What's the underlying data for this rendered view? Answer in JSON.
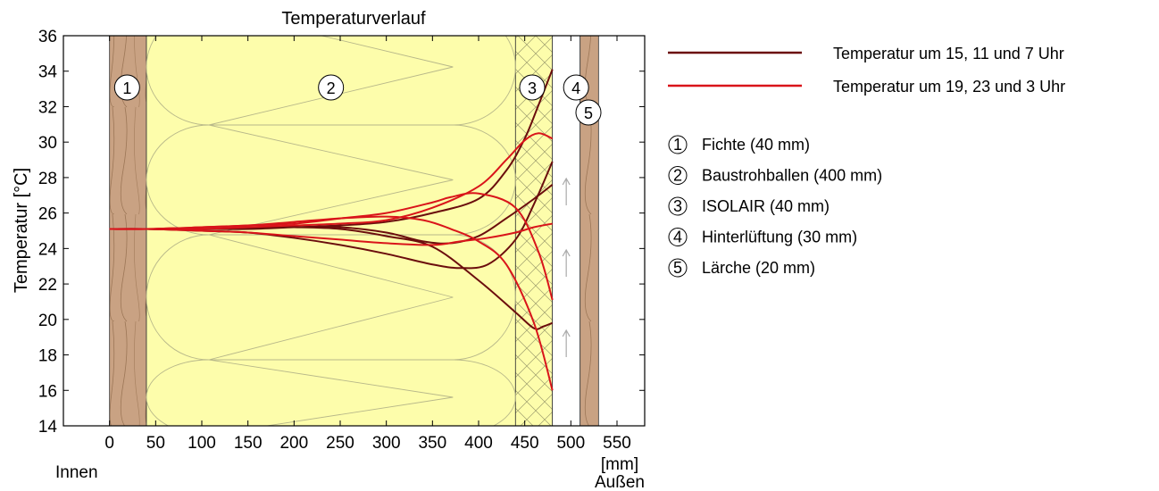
{
  "chart_data": {
    "type": "line",
    "title": "Temperaturverlauf",
    "ylabel": "Temperatur [°C]",
    "xlabel": "[mm]",
    "x_left_label": "Innen",
    "x_right_label": "Außen",
    "xlim": [
      -50,
      580
    ],
    "ylim": [
      14,
      36
    ],
    "xticks": [
      0,
      50,
      100,
      150,
      200,
      250,
      300,
      350,
      400,
      450,
      500,
      550
    ],
    "yticks": [
      14,
      16,
      18,
      20,
      22,
      24,
      26,
      28,
      30,
      32,
      34,
      36
    ],
    "grid": false,
    "legend_position": "right",
    "layers": [
      {
        "number": "1",
        "label": "Fichte (40 mm)",
        "from": 0,
        "to": 40,
        "color": "#c9a283"
      },
      {
        "number": "2",
        "label": "Baustrohballen (400 mm)",
        "from": 40,
        "to": 440,
        "color": "#fdfdab"
      },
      {
        "number": "3",
        "label": "ISOLAIR (40 mm)",
        "from": 440,
        "to": 480,
        "color": "#fdfdab"
      },
      {
        "number": "4",
        "label": "Hinterlüftung (30 mm)",
        "from": 480,
        "to": 510,
        "color": "#ffffff"
      },
      {
        "number": "5",
        "label": "Lärche (20 mm)",
        "from": 510,
        "to": 530,
        "color": "#c9a283"
      }
    ],
    "series": [
      {
        "name": "Temperatur um 15, 11 und 7 Uhr",
        "color": "#6b0d0d",
        "curves": [
          {
            "x": [
              0,
              40,
              100,
              150,
              200,
              250,
              300,
              350,
              400,
              430,
              450,
              465,
              480
            ],
            "y": [
              25.1,
              25.1,
              25.1,
              25.1,
              25.2,
              25.3,
              25.5,
              26.0,
              26.8,
              28.4,
              30.2,
              32.1,
              34.1
            ]
          },
          {
            "x": [
              0,
              40,
              100,
              150,
              200,
              250,
              300,
              350,
              380,
              410,
              440,
              460,
              480
            ],
            "y": [
              25.1,
              25.1,
              25.0,
              24.9,
              24.6,
              24.2,
              23.7,
              23.1,
              22.9,
              23.1,
              24.5,
              26.5,
              28.9
            ]
          },
          {
            "x": [
              0,
              40,
              100,
              150,
              200,
              250,
              300,
              350,
              400,
              440,
              460,
              470,
              480
            ],
            "y": [
              25.1,
              25.1,
              25.1,
              25.2,
              25.2,
              25.1,
              24.7,
              24.1,
              22.2,
              20.4,
              19.5,
              19.6,
              19.8
            ]
          },
          {
            "x": [
              0,
              40,
              100,
              150,
              200,
              250,
              300,
              340,
              370,
              400,
              430,
              460,
              480
            ],
            "y": [
              25.1,
              25.1,
              25.1,
              25.2,
              25.2,
              25.2,
              24.9,
              24.4,
              24.3,
              24.7,
              25.7,
              26.8,
              27.6
            ]
          }
        ]
      },
      {
        "name": "Temperatur um 19, 23 und 3 Uhr",
        "color": "#d9141a",
        "curves": [
          {
            "x": [
              0,
              40,
              100,
              150,
              200,
              250,
              300,
              340,
              370,
              400,
              430,
              460,
              480
            ],
            "y": [
              25.1,
              25.1,
              25.2,
              25.3,
              25.5,
              25.7,
              25.8,
              25.6,
              25.1,
              24.4,
              23.1,
              19.8,
              16.0
            ]
          },
          {
            "x": [
              0,
              40,
              100,
              150,
              200,
              250,
              300,
              350,
              370,
              400,
              440,
              465,
              480
            ],
            "y": [
              25.1,
              25.1,
              25.2,
              25.3,
              25.4,
              25.7,
              26.0,
              26.6,
              26.9,
              27.1,
              26.3,
              23.8,
              21.1
            ]
          },
          {
            "x": [
              0,
              40,
              100,
              150,
              200,
              250,
              300,
              350,
              400,
              430,
              450,
              465,
              480
            ],
            "y": [
              25.1,
              25.1,
              25.1,
              25.2,
              25.3,
              25.4,
              25.6,
              26.3,
              27.5,
              29.0,
              30.1,
              30.5,
              30.2
            ]
          },
          {
            "x": [
              0,
              40,
              100,
              150,
              200,
              250,
              300,
              350,
              380,
              410,
              440,
              460,
              480
            ],
            "y": [
              25.1,
              25.1,
              25.0,
              24.9,
              24.7,
              24.5,
              24.3,
              24.2,
              24.4,
              24.6,
              24.9,
              25.2,
              25.4
            ]
          }
        ]
      }
    ]
  }
}
